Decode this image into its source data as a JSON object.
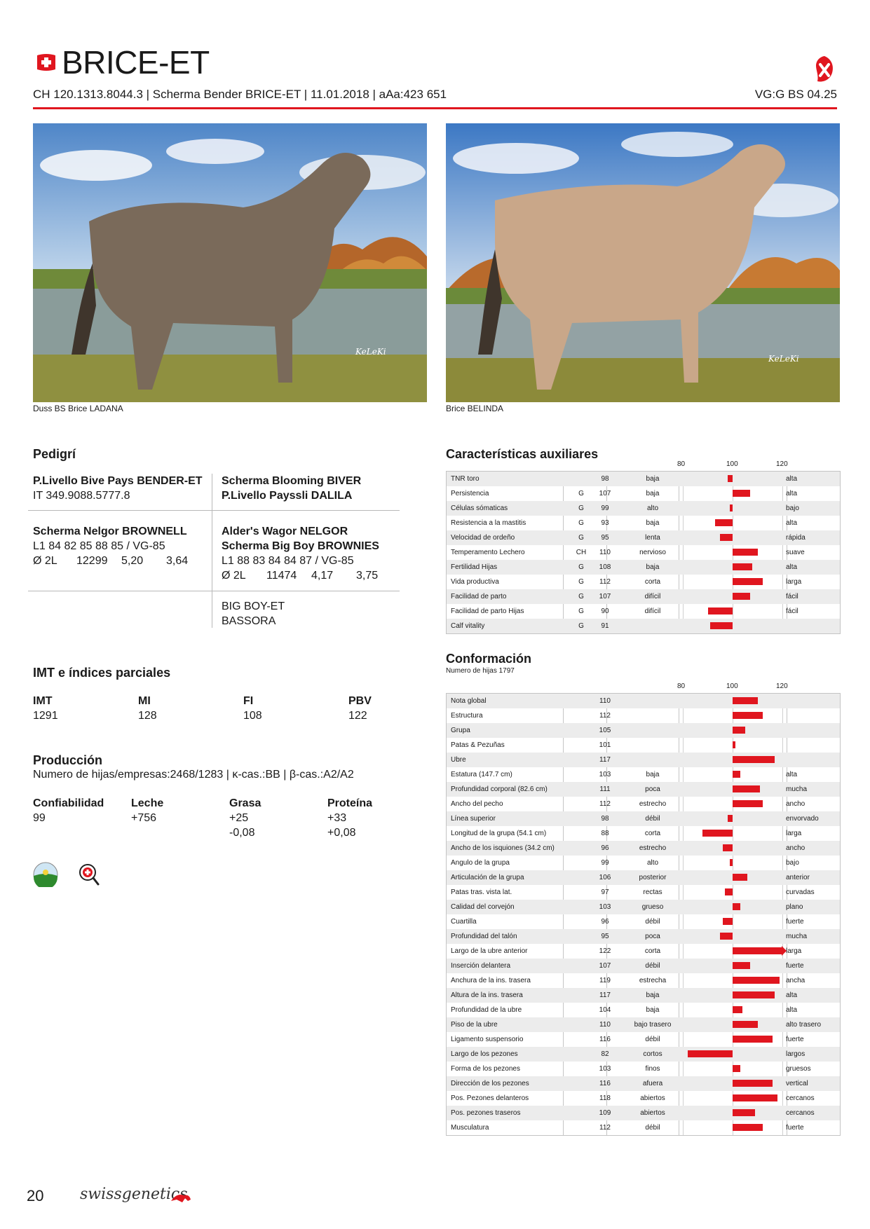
{
  "header": {
    "title": "BRICE-ET",
    "subline": "CH 120.1313.8044.3 | Scherma Bender BRICE-ET | 11.01.2018 | aAa:423 651",
    "classification": "VG:G BS 04.25"
  },
  "photos": [
    {
      "caption": "Duss BS Brice LADANA",
      "watermark": "KeLeKi"
    },
    {
      "caption": "Brice BELINDA",
      "watermark": "KeLeKi"
    }
  ],
  "pedigree": {
    "title": "Pedigrí",
    "sire": {
      "name": "P.Livello Bive Pays BENDER-ET",
      "id": "IT 349.9088.5777.8"
    },
    "sire_sire": "Scherma Blooming BIVER",
    "sire_dam": "P.Livello Payssli DALILA",
    "dam": {
      "name": "Scherma Nelgor BROWNELL",
      "lines": [
        "L1 84 82 85 88 85 / VG-85"
      ],
      "lact": "Ø 2L",
      "milk": "12299",
      "fat": "5,20",
      "prot": "3,64"
    },
    "dam_sire": "Alder's Wagor NELGOR",
    "dam_dam": {
      "name": "Scherma Big Boy BROWNIES",
      "line": "L1 88 83 84 84 87 / VG-85",
      "lact": "Ø 2L",
      "milk": "11474",
      "fat": "4,17",
      "prot": "3,75"
    },
    "ggs": "BIG BOY-ET",
    "ggd": "BASSORA"
  },
  "indices": {
    "title": "IMT e índices parciales",
    "items": [
      {
        "label": "IMT",
        "value": "1291"
      },
      {
        "label": "MI",
        "value": "128"
      },
      {
        "label": "FI",
        "value": "108"
      },
      {
        "label": "PBV",
        "value": "122"
      }
    ]
  },
  "production": {
    "title": "Producción",
    "subtitle": "Numero de hijas/empresas:2468/1283 | κ-cas.:BB | β-cas.:A2/A2",
    "cols": [
      {
        "label": "Confiabilidad",
        "v1": "99",
        "v2": ""
      },
      {
        "label": "Leche",
        "v1": "+756",
        "v2": ""
      },
      {
        "label": "Grasa",
        "v1": "+25",
        "v2": "-0,08"
      },
      {
        "label": "Proteína",
        "v1": "+33",
        "v2": "+0,08"
      }
    ]
  },
  "aux": {
    "title": "Características auxiliares",
    "scale": [
      "80",
      "100",
      "120"
    ],
    "rows": [
      {
        "name": "TNR toro",
        "g": "",
        "value": 98,
        "low": "baja",
        "high": "alta"
      },
      {
        "name": "Persistencia",
        "g": "G",
        "value": 107,
        "low": "baja",
        "high": "alta"
      },
      {
        "name": "Células sómaticas",
        "g": "G",
        "value": 99,
        "low": "alto",
        "high": "bajo"
      },
      {
        "name": "Resistencia a la mastitis",
        "g": "G",
        "value": 93,
        "low": "baja",
        "high": "alta"
      },
      {
        "name": "Velocidad de ordeño",
        "g": "G",
        "value": 95,
        "low": "lenta",
        "high": "rápida"
      },
      {
        "name": "Temperamento Lechero",
        "g": "CH",
        "value": 110,
        "low": "nervioso",
        "high": "suave"
      },
      {
        "name": "Fertilidad Hijas",
        "g": "G",
        "value": 108,
        "low": "baja",
        "high": "alta"
      },
      {
        "name": "Vida productiva",
        "g": "G",
        "value": 112,
        "low": "corta",
        "high": "larga"
      },
      {
        "name": "Facilidad de parto",
        "g": "G",
        "value": 107,
        "low": "difícil",
        "high": "fácil"
      },
      {
        "name": "Facilidad de parto Hijas",
        "g": "G",
        "value": 90,
        "low": "difícil",
        "high": "fácil"
      },
      {
        "name": "Calf vitality",
        "g": "G",
        "value": 91,
        "low": "",
        "high": ""
      }
    ]
  },
  "conf": {
    "title": "Conformación",
    "subtitle": "Numero de hijas 1797",
    "scale": [
      "80",
      "100",
      "120"
    ],
    "rows": [
      {
        "name": "Nota global",
        "value": 110,
        "low": "",
        "high": ""
      },
      {
        "name": "Estructura",
        "value": 112,
        "low": "",
        "high": ""
      },
      {
        "name": "Grupa",
        "value": 105,
        "low": "",
        "high": ""
      },
      {
        "name": "Patas & Pezuñas",
        "value": 101,
        "low": "",
        "high": ""
      },
      {
        "name": "Ubre",
        "value": 117,
        "low": "",
        "high": ""
      },
      {
        "name": "Estatura (147.7 cm)",
        "value": 103,
        "low": "baja",
        "high": "alta"
      },
      {
        "name": "Profundidad corporal (82.6 cm)",
        "value": 111,
        "low": "poca",
        "high": "mucha"
      },
      {
        "name": "Ancho del pecho",
        "value": 112,
        "low": "estrecho",
        "high": "ancho"
      },
      {
        "name": "Línea superior",
        "value": 98,
        "low": "débil",
        "high": "envorvado"
      },
      {
        "name": "Longitud de la grupa (54.1 cm)",
        "value": 88,
        "low": "corta",
        "high": "larga"
      },
      {
        "name": "Ancho de los isquiones (34.2 cm)",
        "value": 96,
        "low": "estrecho",
        "high": "ancho"
      },
      {
        "name": "Angulo de la grupa",
        "value": 99,
        "low": "alto",
        "high": "bajo"
      },
      {
        "name": "Articulación de la grupa",
        "value": 106,
        "low": "posterior",
        "high": "anterior"
      },
      {
        "name": "Patas tras. vista lat.",
        "value": 97,
        "low": "rectas",
        "high": "curvadas"
      },
      {
        "name": "Calidad del corvejón",
        "value": 103,
        "low": "grueso",
        "high": "plano"
      },
      {
        "name": "Cuartilla",
        "value": 96,
        "low": "débil",
        "high": "fuerte"
      },
      {
        "name": "Profundidad del talón",
        "value": 95,
        "low": "poca",
        "high": "mucha"
      },
      {
        "name": "Largo de la ubre anterior",
        "value": 122,
        "low": "corta",
        "high": "larga"
      },
      {
        "name": "Inserción delantera",
        "value": 107,
        "low": "débil",
        "high": "fuerte"
      },
      {
        "name": "Anchura de la ins. trasera",
        "value": 119,
        "low": "estrecha",
        "high": "ancha"
      },
      {
        "name": "Altura de la ins. trasera",
        "value": 117,
        "low": "baja",
        "high": "alta"
      },
      {
        "name": "Profundidad de la ubre",
        "value": 104,
        "low": "baja",
        "high": "alta"
      },
      {
        "name": "Piso de la ubre",
        "value": 110,
        "low": "bajo trasero",
        "high": "alto trasero"
      },
      {
        "name": "Ligamento suspensorio",
        "value": 116,
        "low": "débil",
        "high": "fuerte"
      },
      {
        "name": "Largo de los pezones",
        "value": 82,
        "low": "cortos",
        "high": "largos"
      },
      {
        "name": "Forma de los pezones",
        "value": 103,
        "low": "finos",
        "high": "gruesos"
      },
      {
        "name": "Dirección de los pezones",
        "value": 116,
        "low": "afuera",
        "high": "vertical"
      },
      {
        "name": "Pos. Pezones delanteros",
        "value": 118,
        "low": "abiertos",
        "high": "cercanos"
      },
      {
        "name": "Pos. pezones traseros",
        "value": 109,
        "low": "abiertos",
        "high": "cercanos"
      },
      {
        "name": "Musculatura",
        "value": 112,
        "low": "débil",
        "high": "fuerte"
      }
    ]
  },
  "footer": {
    "page": "20",
    "brand": "swissgenetics"
  },
  "colors": {
    "accent": "#e0161f",
    "grid": "#c4c4c4",
    "row_alt": "#ececec"
  }
}
